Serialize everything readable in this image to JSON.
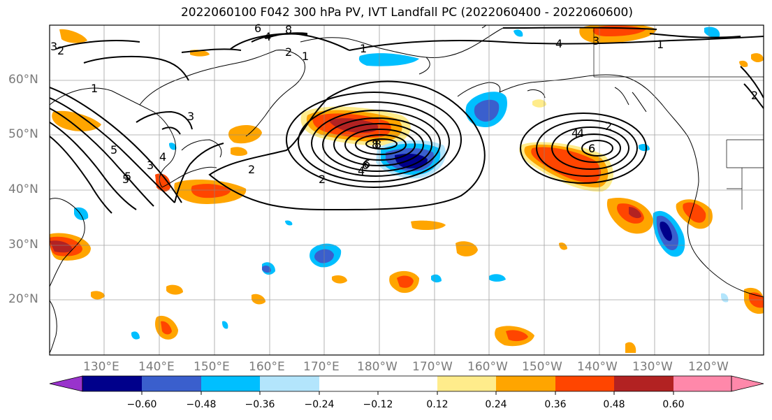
{
  "title": "2022060100 F042 300 hPa PV, IVT Landfall PC (2022060400 - 2022060600)",
  "lat_labels": [
    "60°N",
    "50°N",
    "40°N",
    "30°N",
    "20°N"
  ],
  "lon_labels": [
    "130°E",
    "140°E",
    "150°E",
    "160°E",
    "170°E",
    "180°W",
    "170°W",
    "160°W",
    "150°W",
    "140°W",
    "130°W",
    "120°W"
  ],
  "pv_contour_labels": [
    "1",
    "2",
    "3",
    "4",
    "5",
    "6",
    "8",
    "1",
    "2",
    "3",
    "4",
    "5",
    "6",
    "8",
    "1",
    "2",
    "4",
    "6",
    "2",
    "4",
    "6",
    "8",
    "1",
    "2",
    "3",
    "4",
    "5",
    "6",
    "2",
    "4",
    "3"
  ],
  "colorbar": {
    "ticks": [
      "−0.60",
      "−0.48",
      "−0.36",
      "−0.24",
      "−0.12",
      "0.12",
      "0.24",
      "0.36",
      "0.48",
      "0.60"
    ],
    "colors": [
      "#9933cc",
      "#00008b",
      "#3a5fcd",
      "#00bfff",
      "#b3e5fc",
      "#ffffff",
      "#ffec8b",
      "#ffa500",
      "#ff4500",
      "#b22222",
      "#ff88aa"
    ]
  },
  "colors": {
    "neg_strong": "#00008b",
    "neg_mid": "#3a5fcd",
    "neg_light": "#00bfff",
    "neg_pale": "#b3e5fc",
    "pos_pale": "#ffec8b",
    "pos_light": "#ffa500",
    "pos_mid": "#ff4500",
    "pos_strong": "#b22222"
  }
}
